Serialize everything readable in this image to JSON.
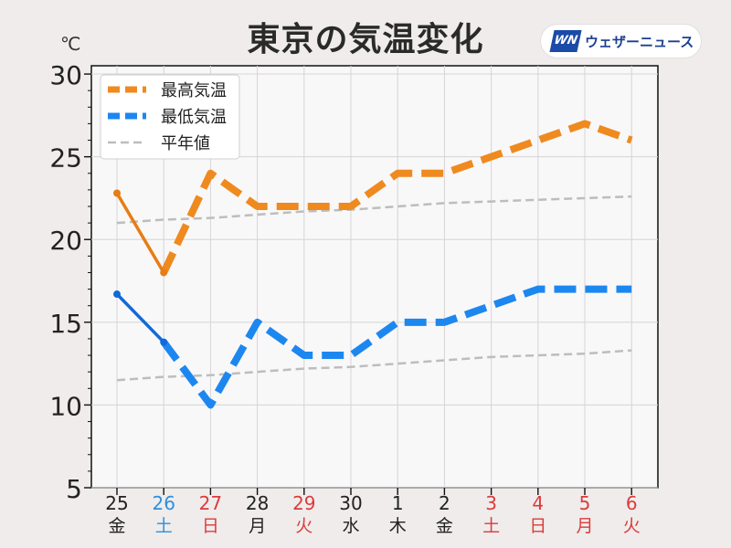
{
  "title": "東京の気温変化",
  "unit": "℃",
  "brand": {
    "logo": "WN",
    "name": "ウェザーニュース"
  },
  "colors": {
    "max_solid": "#e77d13",
    "max_dash": "#ef8a1f",
    "min_solid": "#1269d8",
    "min_dash": "#1d87f0",
    "normal": "#bdbdbd",
    "weekday": "#222222",
    "saturday": "#2f8fdc",
    "holiday": "#dc3b3b"
  },
  "chart_data": {
    "type": "line",
    "categories": [
      {
        "day": "25",
        "weekday": "金",
        "kind": "weekday"
      },
      {
        "day": "26",
        "weekday": "土",
        "kind": "saturday"
      },
      {
        "day": "27",
        "weekday": "日",
        "kind": "holiday"
      },
      {
        "day": "28",
        "weekday": "月",
        "kind": "weekday"
      },
      {
        "day": "29",
        "weekday": "火",
        "kind": "holiday"
      },
      {
        "day": "30",
        "weekday": "水",
        "kind": "weekday"
      },
      {
        "day": "1",
        "weekday": "木",
        "kind": "weekday"
      },
      {
        "day": "2",
        "weekday": "金",
        "kind": "weekday"
      },
      {
        "day": "3",
        "weekday": "土",
        "kind": "holiday"
      },
      {
        "day": "4",
        "weekday": "日",
        "kind": "holiday"
      },
      {
        "day": "5",
        "weekday": "月",
        "kind": "holiday"
      },
      {
        "day": "6",
        "weekday": "火",
        "kind": "holiday"
      }
    ],
    "series": [
      {
        "name": "最高気温",
        "values": [
          22.8,
          18,
          24,
          22,
          22,
          22,
          24,
          24,
          25,
          26,
          27,
          26
        ],
        "observed_until_index": 1
      },
      {
        "name": "最低気温",
        "values": [
          16.7,
          13.8,
          10,
          15,
          13,
          13,
          15,
          15,
          16,
          17,
          17,
          17
        ],
        "observed_until_index": 1
      },
      {
        "name": "平年値",
        "values": [
          21.0,
          21.2,
          21.3,
          21.5,
          21.7,
          21.8,
          22.0,
          22.2,
          22.3,
          22.4,
          22.5,
          22.6
        ]
      },
      {
        "name": "平年値",
        "values": [
          11.5,
          11.7,
          11.8,
          12.0,
          12.2,
          12.3,
          12.5,
          12.7,
          12.9,
          13.0,
          13.1,
          13.3
        ]
      }
    ],
    "ylim": [
      5,
      30.5
    ],
    "yticks": [
      "5",
      "10",
      "15",
      "20",
      "25",
      "30"
    ],
    "grid": true,
    "legend_position": "top-left",
    "legend": [
      "最高気温",
      "最低気温",
      "平年値"
    ]
  }
}
